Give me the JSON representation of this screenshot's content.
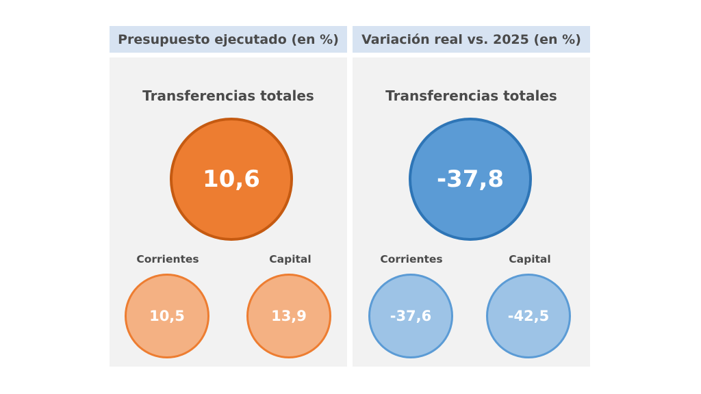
{
  "panels": [
    {
      "header": "Presupuesto ejecutado (en %)",
      "title": "Transferencias totales",
      "total_value": "10,6",
      "items": [
        {
          "label": "Corrientes",
          "value": "10,5"
        },
        {
          "label": "Capital",
          "value": "13,9"
        }
      ],
      "colors": {
        "big_fill": "#ed7d31",
        "big_border": "#c55a11",
        "small_fill": "#f4b183",
        "small_border": "#ed7d31"
      }
    },
    {
      "header": "Variación real vs. 2025 (en %)",
      "title": "Transferencias totales",
      "total_value": "-37,8",
      "items": [
        {
          "label": "Corrientes",
          "value": "-37,6"
        },
        {
          "label": "Capital",
          "value": "-42,5"
        }
      ],
      "colors": {
        "big_fill": "#5b9bd5",
        "big_border": "#2e75b6",
        "small_fill": "#9dc3e6",
        "small_border": "#5b9bd5"
      }
    }
  ],
  "chart_data": [
    {
      "type": "bubble",
      "title": "Presupuesto ejecutado (en %)",
      "categories": [
        "Transferencias totales",
        "Corrientes",
        "Capital"
      ],
      "values": [
        10.6,
        10.5,
        13.9
      ]
    },
    {
      "type": "bubble",
      "title": "Variación real vs. 2025 (en %)",
      "categories": [
        "Transferencias totales",
        "Corrientes",
        "Capital"
      ],
      "values": [
        -37.8,
        -37.6,
        -42.5
      ]
    }
  ]
}
